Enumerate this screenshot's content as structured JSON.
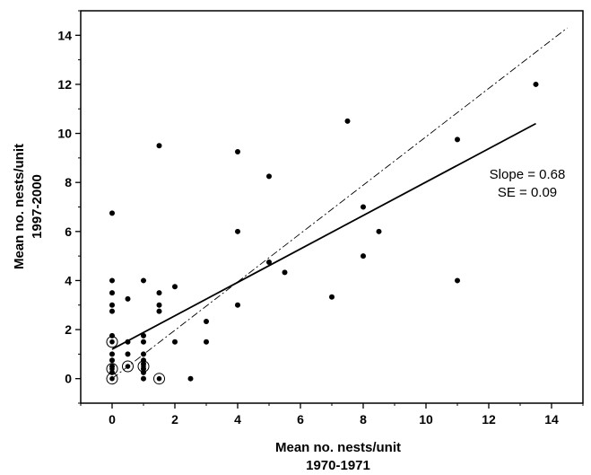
{
  "chart_data": {
    "type": "scatter",
    "title": "",
    "xlabel": [
      "Mean no. nests/unit",
      "1970-1971"
    ],
    "ylabel": [
      "Mean no. nests/unit",
      "1997-2000"
    ],
    "xlim": [
      -1,
      15
    ],
    "ylim": [
      -1,
      15
    ],
    "xticks": [
      0,
      2,
      4,
      6,
      8,
      10,
      12,
      14
    ],
    "yticks": [
      0,
      2,
      4,
      6,
      8,
      10,
      12,
      14
    ],
    "grid": false,
    "points": [
      {
        "x": 0,
        "y": 6.75
      },
      {
        "x": 0,
        "y": 4
      },
      {
        "x": 0,
        "y": 3.5
      },
      {
        "x": 0,
        "y": 3
      },
      {
        "x": 0,
        "y": 2.75
      },
      {
        "x": 0,
        "y": 1.75
      },
      {
        "x": 0,
        "y": 1
      },
      {
        "x": 0,
        "y": 0.75
      },
      {
        "x": 0,
        "y": 0.5
      },
      {
        "x": 0,
        "y": 0.25
      },
      {
        "x": 0.5,
        "y": 3.25
      },
      {
        "x": 0.5,
        "y": 1.5
      },
      {
        "x": 0.5,
        "y": 1
      },
      {
        "x": 1,
        "y": 4
      },
      {
        "x": 1,
        "y": 1.75
      },
      {
        "x": 1,
        "y": 1.5
      },
      {
        "x": 1,
        "y": 1
      },
      {
        "x": 1,
        "y": 0.75
      },
      {
        "x": 1,
        "y": 0.6
      },
      {
        "x": 1,
        "y": 0.4
      },
      {
        "x": 1,
        "y": 0.25
      },
      {
        "x": 1,
        "y": 0
      },
      {
        "x": 1.5,
        "y": 9.5
      },
      {
        "x": 1.5,
        "y": 3.5
      },
      {
        "x": 1.5,
        "y": 3
      },
      {
        "x": 1.5,
        "y": 2.75
      },
      {
        "x": 2,
        "y": 3.75
      },
      {
        "x": 2,
        "y": 1.5
      },
      {
        "x": 2.5,
        "y": 0
      },
      {
        "x": 3,
        "y": 2.33
      },
      {
        "x": 3,
        "y": 1.5
      },
      {
        "x": 4,
        "y": 9.25
      },
      {
        "x": 4,
        "y": 6
      },
      {
        "x": 4,
        "y": 3
      },
      {
        "x": 5,
        "y": 8.25
      },
      {
        "x": 5,
        "y": 4.75
      },
      {
        "x": 5.5,
        "y": 4.33
      },
      {
        "x": 7,
        "y": 3.33
      },
      {
        "x": 7.5,
        "y": 10.5
      },
      {
        "x": 8,
        "y": 7
      },
      {
        "x": 8,
        "y": 5
      },
      {
        "x": 8.5,
        "y": 6
      },
      {
        "x": 11,
        "y": 9.75
      },
      {
        "x": 11,
        "y": 4
      },
      {
        "x": 13.5,
        "y": 12
      }
    ],
    "circled_points": [
      {
        "x": 0,
        "y": 1.5
      },
      {
        "x": 0,
        "y": 0.4
      },
      {
        "x": 0,
        "y": 0
      },
      {
        "x": 0.5,
        "y": 0.5
      },
      {
        "x": 1,
        "y": 0.5
      },
      {
        "x": 1.5,
        "y": 0
      }
    ],
    "regression_line": {
      "style": "solid",
      "x": [
        0,
        13.5
      ],
      "y": [
        1.2,
        10.4
      ]
    },
    "reference_line": {
      "style": "dash-dot",
      "x": [
        0,
        14.5
      ],
      "y": [
        0,
        14.3
      ]
    },
    "annotations": [
      "Slope = 0.68",
      "SE = 0.09"
    ]
  }
}
